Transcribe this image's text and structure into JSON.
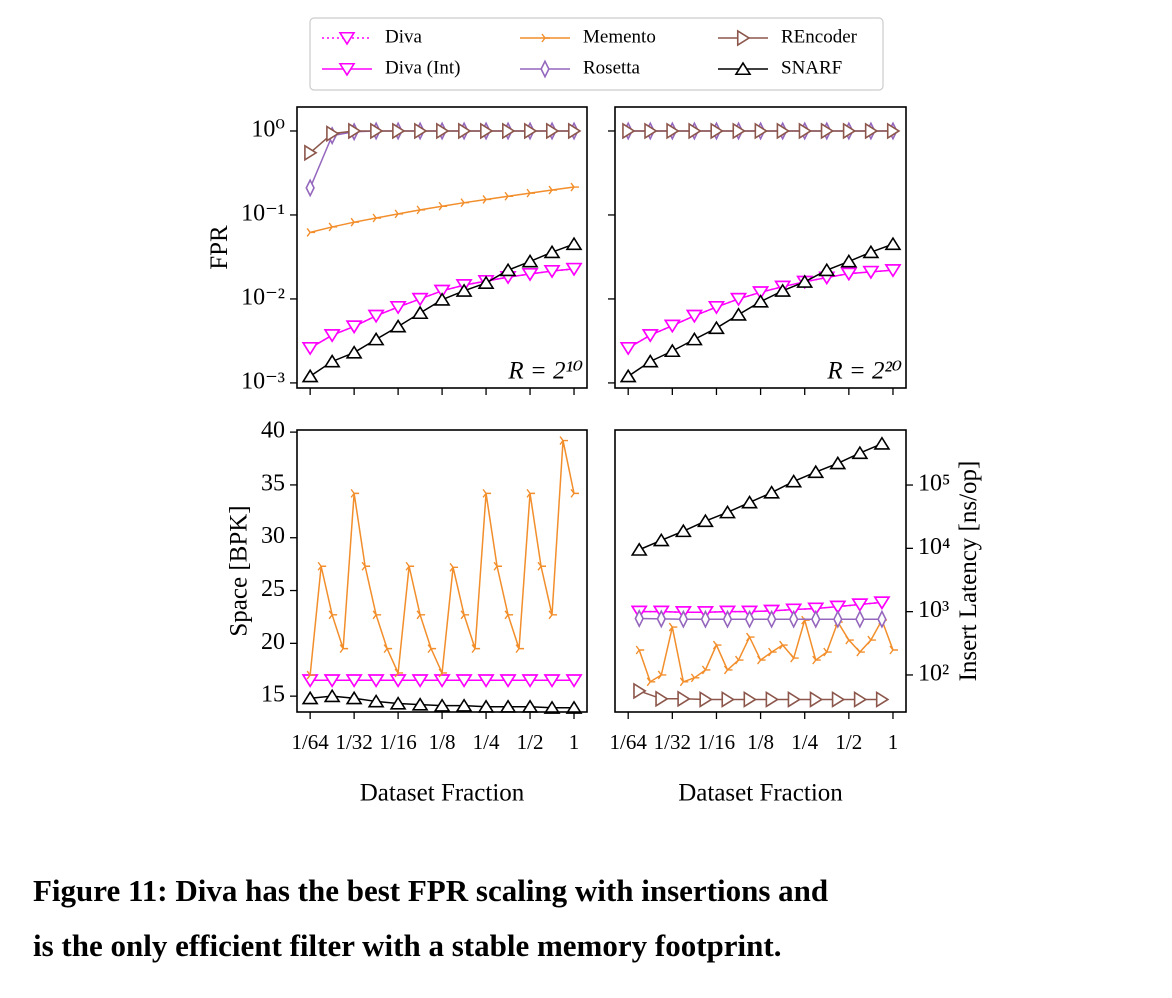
{
  "chart_data": [
    {
      "type": "line",
      "ylabel": "FPR",
      "annotation": "R = 2¹⁰",
      "xscale": "log",
      "yscale": "log",
      "xlim": [
        0.0127,
        1.227
      ],
      "ylim": [
        0.00087,
        1.93
      ],
      "xticks": [
        0.015625,
        0.03125,
        0.0625,
        0.125,
        0.25,
        0.5,
        1
      ],
      "xticklabels": false,
      "yticks": [
        {
          "value": 0.001,
          "label": "10⁻³"
        },
        {
          "value": 0.01,
          "label": "10⁻²"
        },
        {
          "value": 0.1,
          "label": "10⁻¹"
        },
        {
          "value": 1,
          "label": "10⁰"
        }
      ],
      "legend": "upper center",
      "x": [
        0.015625,
        0.0221,
        0.03125,
        0.04419,
        0.0625,
        0.08839,
        0.125,
        0.17678,
        0.25,
        0.35355,
        0.5,
        0.70711,
        1
      ],
      "series": [
        {
          "name": "Diva",
          "color": "#ff00ff",
          "linestyle": "dotted",
          "marker": "v",
          "values": [
            0.0026,
            0.0037,
            0.0047,
            0.0063,
            0.008,
            0.01,
            0.0125,
            0.0146,
            0.0163,
            0.0182,
            0.0198,
            0.0215,
            0.0228
          ]
        },
        {
          "name": "Diva (Int)",
          "color": "#ff00ff",
          "linestyle": "solid",
          "marker": "v",
          "values": [
            0.0026,
            0.0037,
            0.0047,
            0.0063,
            0.008,
            0.01,
            0.0125,
            0.0146,
            0.0163,
            0.0182,
            0.0198,
            0.0215,
            0.0228
          ]
        },
        {
          "name": "Memento",
          "color": "#f28e2b",
          "linestyle": "solid",
          "marker": "tri",
          "values": [
            0.062,
            0.072,
            0.082,
            0.092,
            0.103,
            0.115,
            0.127,
            0.14,
            0.153,
            0.167,
            0.182,
            0.198,
            0.215
          ]
        },
        {
          "name": "Rosetta",
          "color": "#9467bd",
          "linestyle": "solid",
          "marker": "d",
          "values": [
            0.21,
            0.88,
            0.98,
            1,
            1,
            1,
            1,
            1,
            1,
            1,
            1,
            1,
            1
          ]
        },
        {
          "name": "REncoder",
          "color": "#8c564b",
          "linestyle": "solid",
          "marker": ">",
          "values": [
            0.55,
            0.93,
            1,
            1,
            1,
            1,
            1,
            1,
            1,
            1,
            1,
            1,
            1
          ]
        },
        {
          "name": "SNARF",
          "color": "#000000",
          "linestyle": "solid",
          "marker": "^",
          "values": [
            0.0012,
            0.0018,
            0.0023,
            0.0033,
            0.0047,
            0.0068,
            0.0098,
            0.0125,
            0.0155,
            0.022,
            0.028,
            0.036,
            0.045
          ]
        }
      ]
    },
    {
      "type": "line",
      "annotation": "R = 2²⁰",
      "xscale": "log",
      "yscale": "log",
      "xlim": [
        0.0127,
        1.227
      ],
      "ylim": [
        0.00087,
        1.93
      ],
      "xticks": [
        0.015625,
        0.03125,
        0.0625,
        0.125,
        0.25,
        0.5,
        1
      ],
      "xticklabels": false,
      "yticks": [
        0.001,
        0.01,
        0.1,
        1
      ],
      "yticklabels": false,
      "x": [
        0.015625,
        0.0221,
        0.03125,
        0.04419,
        0.0625,
        0.08839,
        0.125,
        0.17678,
        0.25,
        0.35355,
        0.5,
        0.70711,
        1
      ],
      "series": [
        {
          "name": "Diva",
          "color": "#ff00ff",
          "linestyle": "dotted",
          "marker": "v",
          "values": [
            0.0026,
            0.0037,
            0.0048,
            0.0063,
            0.008,
            0.01,
            0.012,
            0.014,
            0.016,
            0.018,
            0.02,
            0.021,
            0.022
          ]
        },
        {
          "name": "Diva (Int)",
          "color": "#ff00ff",
          "linestyle": "solid",
          "marker": "v",
          "values": [
            0.0026,
            0.0037,
            0.0048,
            0.0063,
            0.008,
            0.01,
            0.012,
            0.014,
            0.016,
            0.018,
            0.02,
            0.021,
            0.022
          ]
        },
        {
          "name": "Rosetta",
          "color": "#9467bd",
          "linestyle": "solid",
          "marker": "d",
          "values": [
            1,
            1,
            1,
            1,
            1,
            1,
            1,
            1,
            1,
            1,
            1,
            1,
            1
          ]
        },
        {
          "name": "REncoder",
          "color": "#8c564b",
          "linestyle": "solid",
          "marker": ">",
          "values": [
            1,
            1,
            1,
            1,
            1,
            1,
            1,
            1,
            1,
            1,
            1,
            1,
            1
          ]
        },
        {
          "name": "SNARF",
          "color": "#000000",
          "linestyle": "solid",
          "marker": "^",
          "values": [
            0.0012,
            0.0018,
            0.0024,
            0.0033,
            0.0045,
            0.0065,
            0.0093,
            0.0125,
            0.016,
            0.022,
            0.028,
            0.036,
            0.045
          ]
        }
      ]
    },
    {
      "type": "line",
      "ylabel": "Space [BPK]",
      "xlabel": "Dataset Fraction",
      "xscale": "log",
      "yscale": "linear",
      "xlim": [
        0.0127,
        1.227
      ],
      "ylim": [
        13.5,
        40.2
      ],
      "xticks": [
        {
          "value": 0.015625,
          "label": "1/64"
        },
        {
          "value": 0.03125,
          "label": "1/32"
        },
        {
          "value": 0.0625,
          "label": "1/16"
        },
        {
          "value": 0.125,
          "label": "1/8"
        },
        {
          "value": 0.25,
          "label": "1/4"
        },
        {
          "value": 0.5,
          "label": "1/2"
        },
        1
      ],
      "yticks": [
        15,
        20,
        25,
        30,
        35,
        40
      ],
      "x": [
        0.015625,
        0.0221,
        0.03125,
        0.04419,
        0.0625,
        0.08839,
        0.125,
        0.17678,
        0.25,
        0.35355,
        0.5,
        0.70711,
        1
      ],
      "series": [
        {
          "name": "Diva",
          "color": "#ff00ff",
          "linestyle": "dotted",
          "marker": "v",
          "values": [
            16.5,
            16.5,
            16.5,
            16.5,
            16.5,
            16.5,
            16.5,
            16.5,
            16.5,
            16.5,
            16.5,
            16.5,
            16.5
          ]
        },
        {
          "name": "Diva (Int)",
          "color": "#ff00ff",
          "linestyle": "solid",
          "marker": "v",
          "values": [
            16.5,
            16.5,
            16.5,
            16.5,
            16.5,
            16.5,
            16.5,
            16.5,
            16.5,
            16.5,
            16.5,
            16.5,
            16.5
          ]
        },
        {
          "name": "Memento",
          "color": "#f28e2b",
          "linestyle": "solid",
          "marker": "tri",
          "x": [
            0.015625,
            0.01858,
            0.0221,
            0.02628,
            0.03125,
            0.03716,
            0.04419,
            0.05256,
            0.0625,
            0.07433,
            0.08839,
            0.10511,
            0.125,
            0.14865,
            0.17678,
            0.21022,
            0.25,
            0.2973,
            0.35355,
            0.42045,
            0.5,
            0.5946,
            0.70711,
            0.8409,
            1
          ],
          "values": [
            17,
            27.3,
            22.7,
            19.5,
            34.2,
            27.3,
            22.7,
            19.5,
            17.2,
            27.3,
            22.7,
            19.5,
            17.2,
            27.2,
            22.7,
            19.5,
            34.2,
            27.3,
            22.7,
            19.5,
            34.2,
            27.3,
            22.7,
            39.2,
            34.2
          ]
        },
        {
          "name": "SNARF",
          "color": "#000000",
          "linestyle": "solid",
          "marker": "^",
          "values": [
            14.8,
            15,
            14.8,
            14.5,
            14.3,
            14.2,
            14.1,
            14.1,
            14,
            14,
            14,
            13.9,
            13.9
          ]
        }
      ]
    },
    {
      "type": "line",
      "ylabel": "Insert Latency [ns/op]",
      "xlabel": "Dataset Fraction",
      "xscale": "log",
      "yscale": "log",
      "yaxis_side": "right",
      "xlim": [
        0.0127,
        1.227
      ],
      "ylim": [
        26,
        740000
      ],
      "xticks": [
        {
          "value": 0.015625,
          "label": "1/64"
        },
        {
          "value": 0.03125,
          "label": "1/32"
        },
        {
          "value": 0.0625,
          "label": "1/16"
        },
        {
          "value": 0.125,
          "label": "1/8"
        },
        {
          "value": 0.25,
          "label": "1/4"
        },
        {
          "value": 0.5,
          "label": "1/2"
        },
        1
      ],
      "yticks": [
        {
          "value": 100,
          "label": "10²"
        },
        {
          "value": 1000,
          "label": "10³"
        },
        {
          "value": 10000,
          "label": "10⁴"
        },
        {
          "value": 100000,
          "label": "10⁵"
        }
      ],
      "x": [
        0.01858,
        0.02628,
        0.03716,
        0.05256,
        0.07433,
        0.10511,
        0.14865,
        0.21022,
        0.2973,
        0.42045,
        0.5946,
        0.8409
      ],
      "series": [
        {
          "name": "Diva",
          "color": "#ff00ff",
          "linestyle": "dotted",
          "marker": "v",
          "values": [
            1000,
            1000,
            980,
            980,
            1000,
            1000,
            1030,
            1080,
            1120,
            1200,
            1300,
            1400
          ]
        },
        {
          "name": "Diva (Int)",
          "color": "#ff00ff",
          "linestyle": "solid",
          "marker": "v",
          "values": [
            1000,
            1000,
            980,
            980,
            1000,
            1000,
            1030,
            1080,
            1120,
            1200,
            1300,
            1400
          ]
        },
        {
          "name": "Memento",
          "color": "#f28e2b",
          "linestyle": "solid",
          "marker": "tri",
          "x": [
            0.01858,
            0.0221,
            0.02628,
            0.03125,
            0.03716,
            0.04419,
            0.05256,
            0.0625,
            0.07433,
            0.08839,
            0.10511,
            0.125,
            0.14865,
            0.17678,
            0.21022,
            0.25,
            0.2973,
            0.35355,
            0.42045,
            0.5,
            0.5946,
            0.70711,
            0.8409,
            1
          ],
          "values": [
            248,
            78,
            100,
            570,
            78,
            90,
            120,
            297,
            120,
            172,
            397,
            172,
            230,
            297,
            185,
            735,
            172,
            230,
            684,
            356,
            230,
            356,
            735,
            248
          ]
        },
        {
          "name": "Rosetta",
          "color": "#9467bd",
          "linestyle": "solid",
          "marker": "d",
          "values": [
            780,
            770,
            760,
            760,
            760,
            760,
            760,
            760,
            760,
            760,
            760,
            760
          ]
        },
        {
          "name": "REncoder",
          "color": "#8c564b",
          "linestyle": "solid",
          "marker": ">",
          "values": [
            56,
            42,
            42,
            41,
            41,
            41,
            41,
            41,
            41,
            41,
            41,
            41
          ]
        },
        {
          "name": "SNARF",
          "color": "#000000",
          "linestyle": "solid",
          "marker": "^",
          "values": [
            9500,
            13400,
            18700,
            27000,
            37000,
            53000,
            76000,
            114000,
            160000,
            220000,
            320000,
            450000
          ]
        }
      ]
    }
  ],
  "caption": [
    "Figure 11: Diva has the best FPR scaling with insertions and",
    "is the only efficient filter with a stable memory footprint."
  ]
}
